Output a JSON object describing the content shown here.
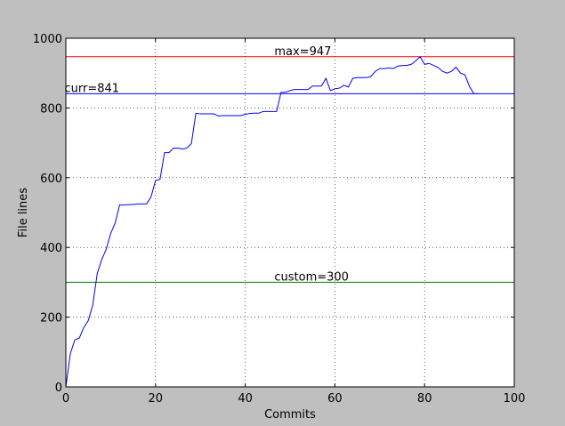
{
  "chart_data": {
    "type": "line",
    "title": "",
    "xlabel": "Commits",
    "ylabel": "File lines",
    "xlim": [
      0,
      100
    ],
    "ylim": [
      0,
      1000
    ],
    "xticks": [
      0,
      20,
      40,
      60,
      80,
      100
    ],
    "yticks": [
      0,
      200,
      400,
      600,
      800,
      1000
    ],
    "xtick_labels": [
      "0",
      "20",
      "40",
      "60",
      "80",
      "100"
    ],
    "ytick_labels": [
      "0",
      "200",
      "400",
      "600",
      "800",
      "1000"
    ],
    "grid": true,
    "line_color": "#0000ff",
    "series": [
      {
        "x": [
          0,
          1,
          2,
          3,
          4,
          5,
          6,
          7,
          8,
          9,
          10,
          11,
          12,
          13,
          14,
          15,
          16,
          17,
          18,
          19,
          20,
          21,
          22,
          23,
          24,
          25,
          26,
          27,
          28,
          29,
          30,
          31,
          32,
          33,
          34,
          35,
          36,
          37,
          38,
          39,
          40,
          41,
          42,
          43,
          44,
          45,
          46,
          47,
          48,
          49,
          50,
          51,
          52,
          53,
          54,
          55,
          56,
          57,
          58,
          59,
          60,
          61,
          62,
          63,
          64,
          65,
          66,
          67,
          68,
          69,
          70,
          71,
          72,
          73,
          74,
          75,
          76,
          77,
          78,
          79,
          80,
          81,
          82,
          83,
          84,
          85,
          86,
          87,
          88,
          89,
          90,
          91,
          92
        ],
        "y": [
          0,
          95,
          135,
          140,
          170,
          190,
          235,
          325,
          365,
          395,
          440,
          470,
          522,
          522,
          523,
          523,
          525,
          525,
          525,
          545,
          592,
          595,
          672,
          672,
          685,
          685,
          682,
          685,
          698,
          785,
          783,
          783,
          783,
          783,
          777,
          778,
          778,
          778,
          778,
          778,
          782,
          784,
          785,
          785,
          790,
          790,
          790,
          790,
          845,
          845,
          850,
          853,
          853,
          853,
          853,
          863,
          863,
          863,
          885,
          850,
          855,
          857,
          865,
          860,
          885,
          887,
          887,
          887,
          890,
          905,
          913,
          913,
          915,
          913,
          920,
          922,
          922,
          925,
          935,
          947,
          925,
          928,
          922,
          916,
          905,
          900,
          905,
          917,
          900,
          895,
          862,
          841,
          841
        ]
      }
    ],
    "reference_lines": [
      {
        "label": "max=947",
        "value": 947,
        "color": "#ff0000",
        "label_x": 46.5
      },
      {
        "label": "curr=841",
        "value": 841,
        "color": "#0000ff",
        "label_x": -0.3
      },
      {
        "label": "custom=300",
        "value": 300,
        "color": "#008000",
        "label_x": 46.5
      }
    ]
  }
}
